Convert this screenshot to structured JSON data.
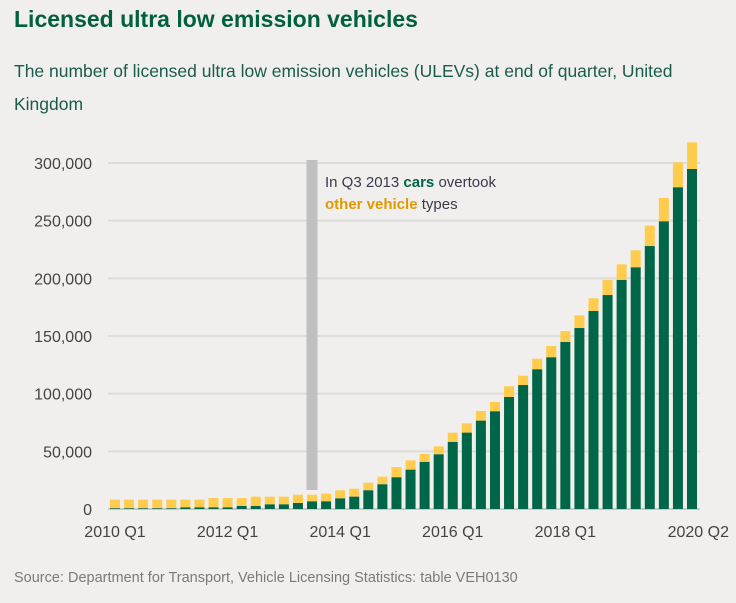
{
  "title": "Licensed ultra low emission vehicles",
  "subtitle": "The number of licensed ultra low emission vehicles (ULEVs) at end of quarter, United Kingdom",
  "source": "Source: Department for Transport, Vehicle Licensing Statistics: table VEH0130",
  "colors": {
    "cars": "#006648",
    "other": "#ffcc4e",
    "annotation_bar": "#c0c0c0",
    "other_text": "#e09a00"
  },
  "annotation": {
    "quarter": "2013 Q3",
    "line1_a": "In Q3 2013 ",
    "line1_b": "cars",
    "line1_c": " overtook",
    "line2_a": "other vehicle",
    "line2_b": " types"
  },
  "chart_data": {
    "type": "bar",
    "stacked": true,
    "title": "Licensed ultra low emission vehicles",
    "ylim": [
      0,
      300000
    ],
    "yticks": [
      0,
      50000,
      100000,
      150000,
      200000,
      250000,
      300000
    ],
    "ytick_labels": [
      "0",
      "50,000",
      "100,000",
      "150,000",
      "200,000",
      "250,000",
      "300,000"
    ],
    "xtick_labels": [
      {
        "index": 0,
        "label": "2010 Q1"
      },
      {
        "index": 8,
        "label": "2012 Q1"
      },
      {
        "index": 16,
        "label": "2014 Q1"
      },
      {
        "index": 24,
        "label": "2016 Q1"
      },
      {
        "index": 32,
        "label": "2018 Q1"
      },
      {
        "index": 41,
        "label": "2020 Q2"
      }
    ],
    "grid": true,
    "categories": [
      "2010 Q1",
      "2010 Q2",
      "2010 Q3",
      "2010 Q4",
      "2011 Q1",
      "2011 Q2",
      "2011 Q3",
      "2011 Q4",
      "2012 Q1",
      "2012 Q2",
      "2012 Q3",
      "2012 Q4",
      "2013 Q1",
      "2013 Q2",
      "2013 Q3",
      "2013 Q4",
      "2014 Q1",
      "2014 Q2",
      "2014 Q3",
      "2014 Q4",
      "2015 Q1",
      "2015 Q2",
      "2015 Q3",
      "2015 Q4",
      "2016 Q1",
      "2016 Q2",
      "2016 Q3",
      "2016 Q4",
      "2017 Q1",
      "2017 Q2",
      "2017 Q3",
      "2017 Q4",
      "2018 Q1",
      "2018 Q2",
      "2018 Q3",
      "2018 Q4",
      "2019 Q1",
      "2019 Q2",
      "2019 Q3",
      "2019 Q4",
      "2020 Q1",
      "2020 Q2"
    ],
    "series": [
      {
        "name": "cars",
        "values": [
          600,
          600,
          600,
          600,
          600,
          1400,
          1400,
          1400,
          1400,
          2600,
          2600,
          4000,
          4000,
          5200,
          6600,
          6600,
          9200,
          10700,
          16200,
          21400,
          27500,
          34100,
          40800,
          47400,
          58100,
          66200,
          76600,
          84700,
          97100,
          107500,
          121100,
          131500,
          144800,
          156900,
          171700,
          185500,
          198600,
          209500,
          228000,
          249400,
          278900,
          294800
        ]
      },
      {
        "name": "other vehicle",
        "values": [
          7500,
          7500,
          7500,
          7500,
          7500,
          6700,
          6700,
          8100,
          8100,
          6900,
          8100,
          6700,
          6700,
          7200,
          5800,
          6700,
          7000,
          6900,
          6600,
          6600,
          8900,
          8100,
          6900,
          6900,
          8100,
          8100,
          8400,
          8100,
          9300,
          8100,
          9200,
          9800,
          9500,
          11000,
          11000,
          13100,
          13500,
          14800,
          17700,
          20300,
          21700,
          23100
        ]
      }
    ]
  }
}
